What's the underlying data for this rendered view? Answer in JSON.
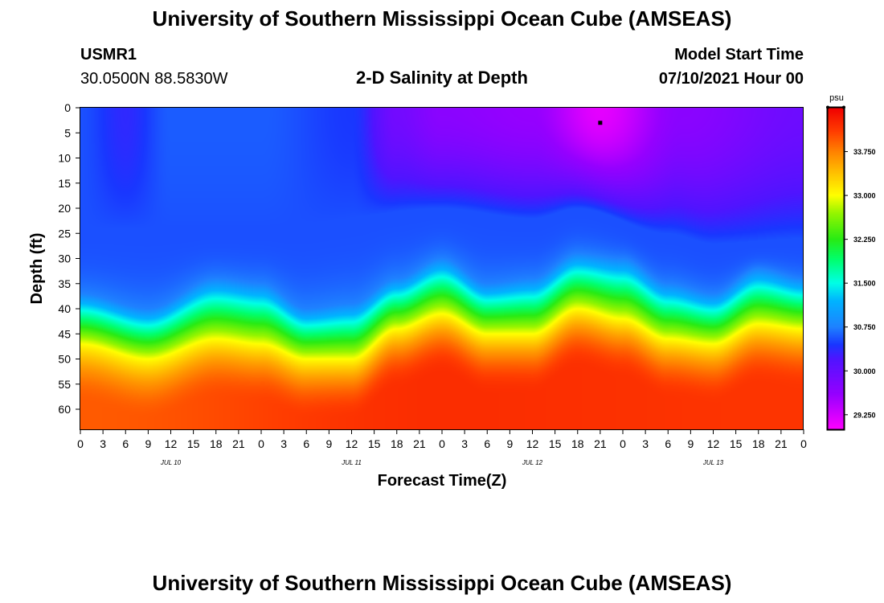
{
  "header": {
    "title": "University of Southern Mississippi Ocean Cube (AMSEAS)",
    "station_id": "USMR1",
    "coordinates": "30.0500N  88.5830W",
    "product": "2-D Salinity at Depth",
    "model_label": "Model Start Time",
    "model_time": "07/10/2021 Hour 00"
  },
  "footer": {
    "title": "University of Southern Mississippi Ocean Cube (AMSEAS)"
  },
  "chart_data": {
    "type": "heatmap",
    "title": "2-D Salinity at Depth",
    "xlabel": "Forecast Time(Z)",
    "ylabel": "Depth (ft)",
    "x_tick_labels": [
      "0",
      "3",
      "6",
      "9",
      "12",
      "15",
      "18",
      "21",
      "0",
      "3",
      "6",
      "9",
      "12",
      "15",
      "18",
      "21",
      "0",
      "3",
      "6",
      "9",
      "12",
      "15",
      "18",
      "21",
      "0",
      "3",
      "6",
      "9",
      "12",
      "15",
      "18",
      "21",
      "0"
    ],
    "day_labels": [
      "JUL 10",
      "JUL 11",
      "JUL 12",
      "JUL 13"
    ],
    "y_tick_labels": [
      "0",
      "5",
      "10",
      "15",
      "20",
      "25",
      "30",
      "35",
      "40",
      "45",
      "50",
      "55",
      "60"
    ],
    "xlim_hours": [
      0,
      96
    ],
    "ylim_ft": [
      0,
      64
    ],
    "colorbar": {
      "unit": "psu",
      "tick_labels": [
        "33.750",
        "33.000",
        "32.250",
        "31.500",
        "30.750",
        "30.000",
        "29.250"
      ],
      "range": [
        29.0,
        34.5
      ]
    },
    "marker": {
      "hour": 69,
      "depth_ft": 3
    },
    "surface_salinity_psu": [
      {
        "hour": 0,
        "value": 30.55
      },
      {
        "hour": 6,
        "value": 30.35
      },
      {
        "hour": 12,
        "value": 30.6
      },
      {
        "hour": 24,
        "value": 30.6
      },
      {
        "hour": 36,
        "value": 30.45
      },
      {
        "hour": 42,
        "value": 29.9
      },
      {
        "hour": 48,
        "value": 29.7
      },
      {
        "hour": 60,
        "value": 29.6
      },
      {
        "hour": 69,
        "value": 29.15
      },
      {
        "hour": 80,
        "value": 29.7
      },
      {
        "hour": 96,
        "value": 29.95
      }
    ],
    "deep_salinity_psu": [
      {
        "hour": 0,
        "value": 33.95
      },
      {
        "hour": 48,
        "value": 34.2
      },
      {
        "hour": 96,
        "value": 34.15
      }
    ],
    "upper_layer_bottom_ft": [
      {
        "hour": 0,
        "depth": 24
      },
      {
        "hour": 24,
        "depth": 24
      },
      {
        "hour": 48,
        "depth": 20
      },
      {
        "hour": 60,
        "depth": 22
      },
      {
        "hour": 66,
        "depth": 20
      },
      {
        "hour": 78,
        "depth": 25
      },
      {
        "hour": 84,
        "depth": 27
      },
      {
        "hour": 96,
        "depth": 26
      }
    ],
    "halocline_30_75_psu_depth_ft": [
      {
        "hour": 0,
        "depth": 37
      },
      {
        "hour": 9,
        "depth": 40
      },
      {
        "hour": 18,
        "depth": 34
      },
      {
        "hour": 24,
        "depth": 35
      },
      {
        "hour": 30,
        "depth": 40
      },
      {
        "hour": 36,
        "depth": 39
      },
      {
        "hour": 42,
        "depth": 34
      },
      {
        "hour": 48,
        "depth": 30
      },
      {
        "hour": 54,
        "depth": 35
      },
      {
        "hour": 60,
        "depth": 34
      },
      {
        "hour": 66,
        "depth": 29
      },
      {
        "hour": 72,
        "depth": 30
      },
      {
        "hour": 78,
        "depth": 35
      },
      {
        "hour": 84,
        "depth": 37
      },
      {
        "hour": 90,
        "depth": 32
      },
      {
        "hour": 96,
        "depth": 34
      }
    ],
    "halocline_33_psu_depth_ft": [
      {
        "hour": 0,
        "depth": 47
      },
      {
        "hour": 9,
        "depth": 50
      },
      {
        "hour": 18,
        "depth": 46
      },
      {
        "hour": 24,
        "depth": 47
      },
      {
        "hour": 30,
        "depth": 50
      },
      {
        "hour": 36,
        "depth": 50
      },
      {
        "hour": 42,
        "depth": 44
      },
      {
        "hour": 48,
        "depth": 41
      },
      {
        "hour": 54,
        "depth": 45
      },
      {
        "hour": 60,
        "depth": 45
      },
      {
        "hour": 66,
        "depth": 40
      },
      {
        "hour": 72,
        "depth": 42
      },
      {
        "hour": 78,
        "depth": 46
      },
      {
        "hour": 84,
        "depth": 47
      },
      {
        "hour": 90,
        "depth": 43
      },
      {
        "hour": 96,
        "depth": 44
      }
    ]
  }
}
